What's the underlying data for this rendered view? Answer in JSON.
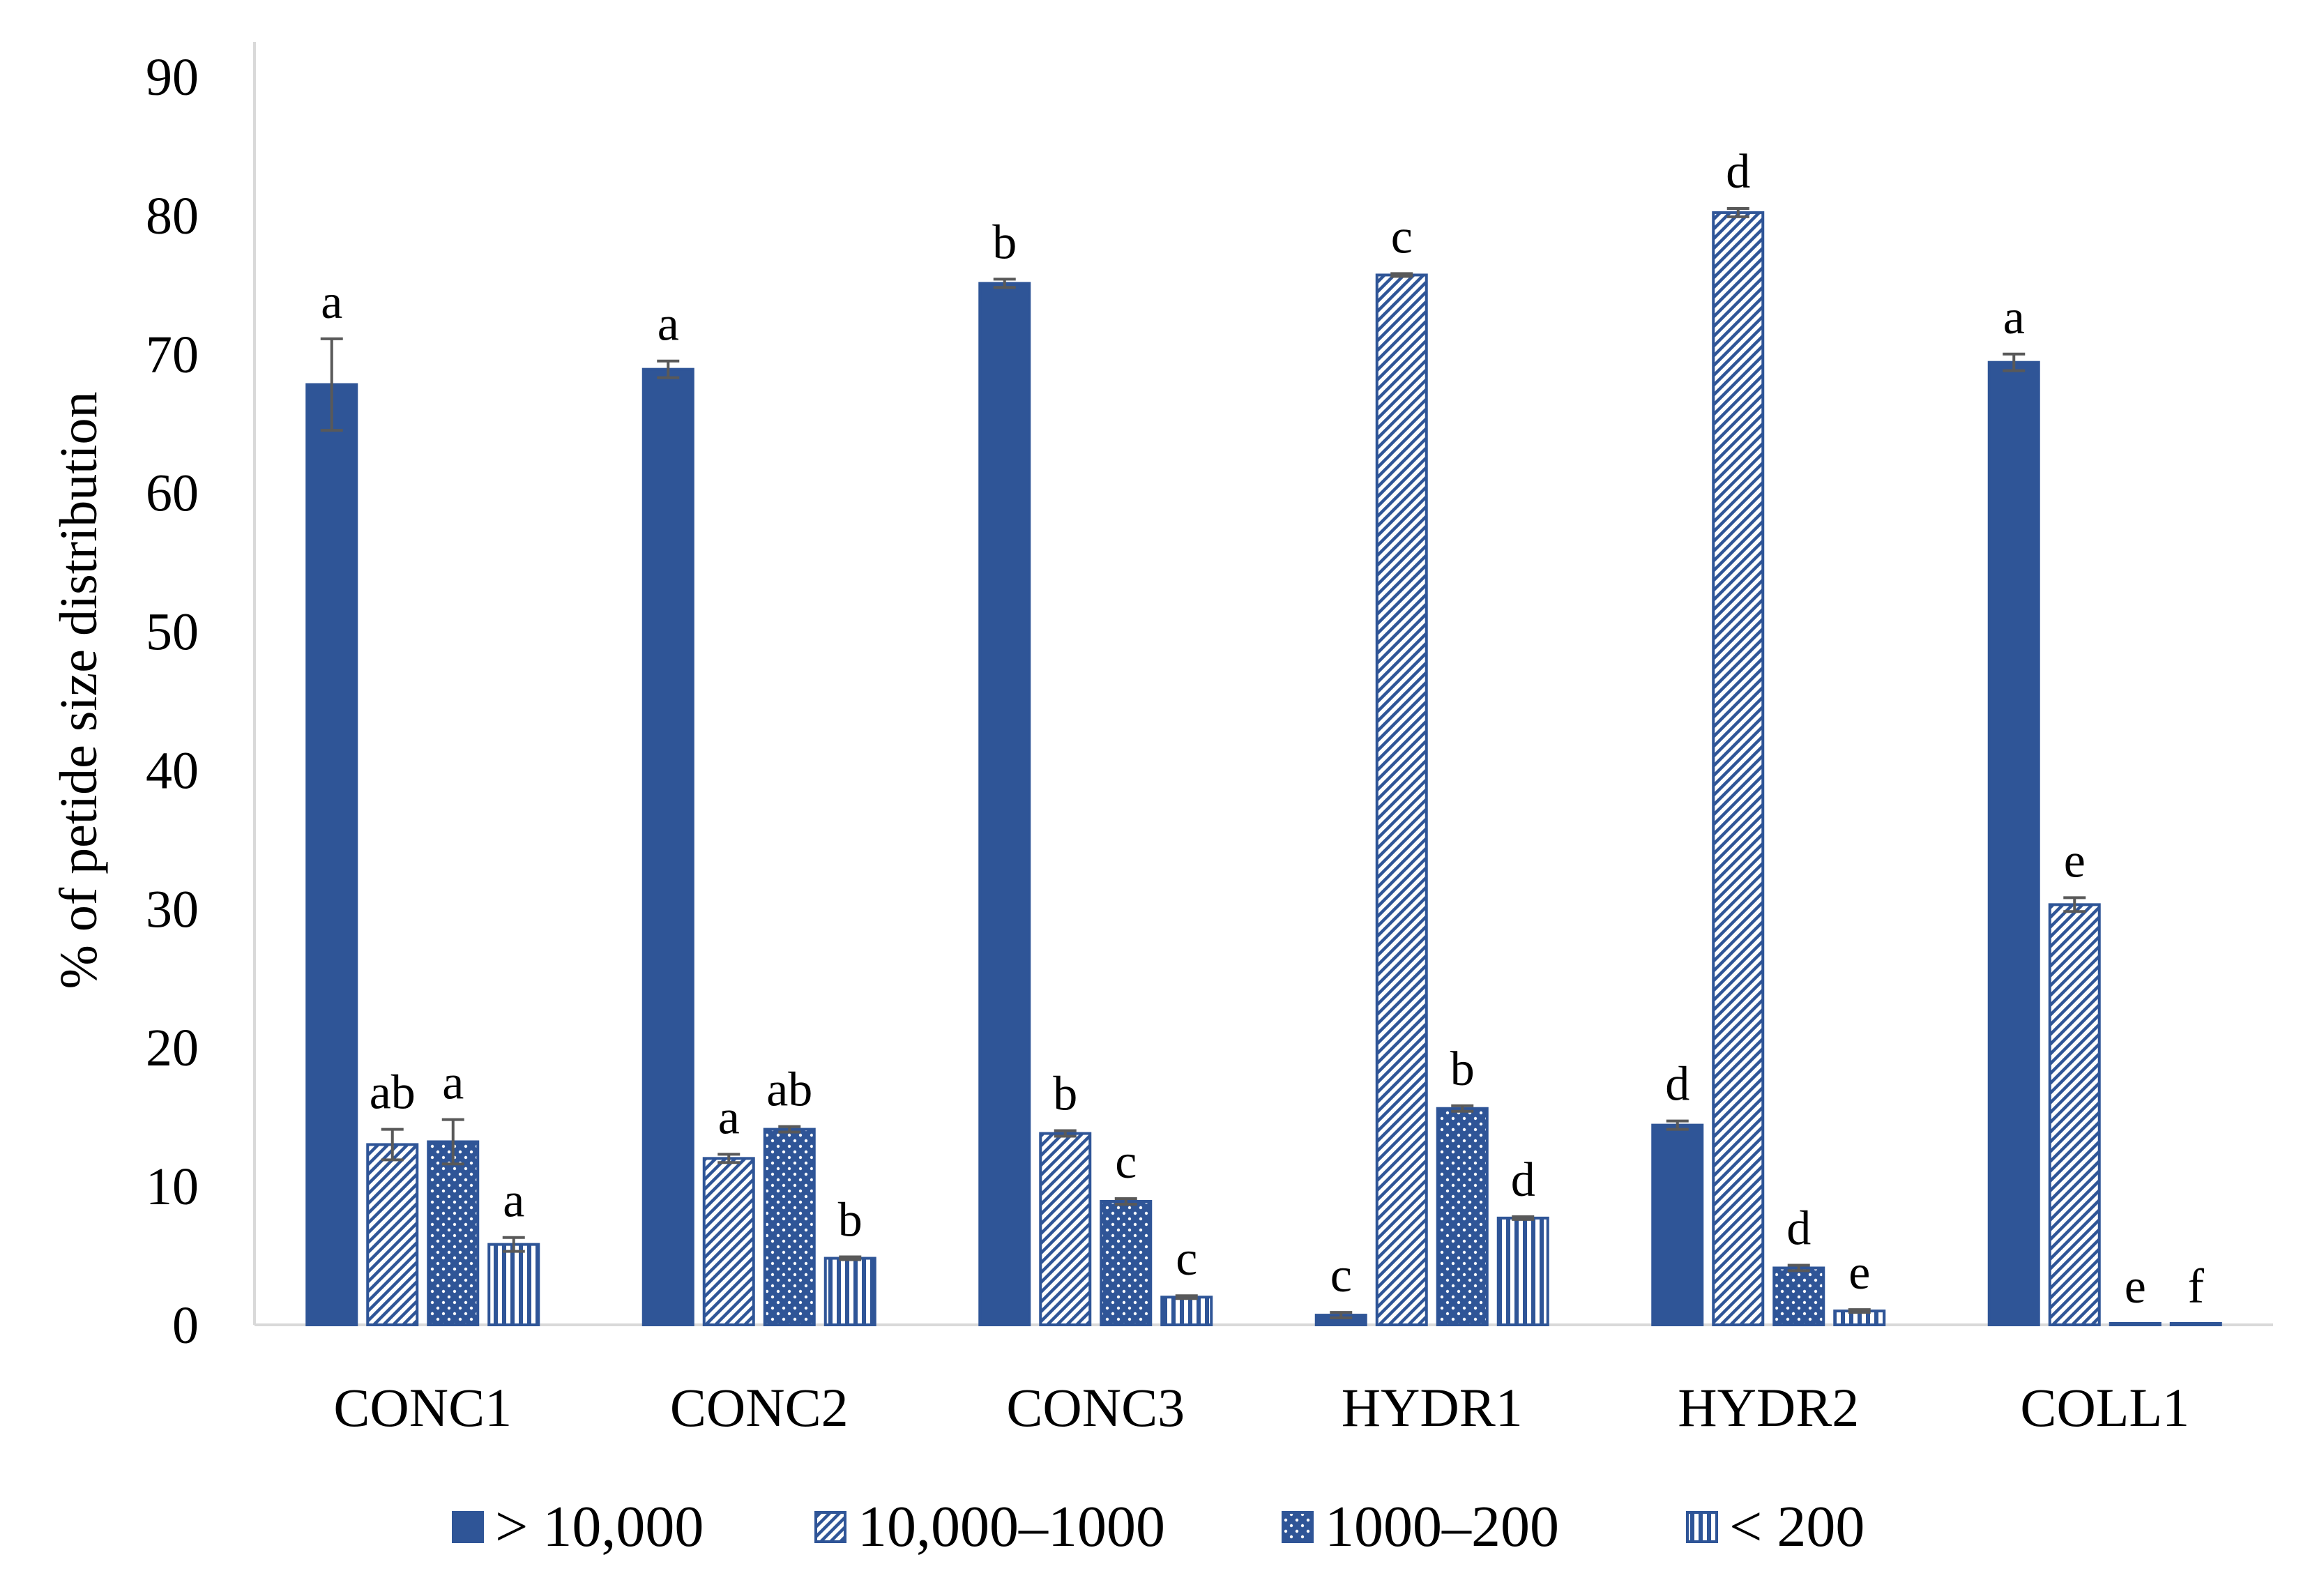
{
  "chart_data": {
    "type": "bar",
    "title": "",
    "xlabel": "",
    "ylabel": "% of petide size distribution",
    "ylim": [
      0,
      90
    ],
    "yticks": [
      0,
      10,
      20,
      30,
      40,
      50,
      60,
      70,
      80,
      90
    ],
    "grid": false,
    "legend_position": "bottom",
    "categories": [
      "CONC1",
      "CONC2",
      "CONC3",
      "HYDR1",
      "HYDR2",
      "COLL1"
    ],
    "series": [
      {
        "name": "> 10,000",
        "pattern": "solid",
        "values": [
          67.8,
          68.9,
          75.1,
          0.7,
          14.4,
          69.4
        ],
        "errors": [
          3.3,
          0.6,
          0.3,
          0.2,
          0.3,
          0.6
        ],
        "letters": [
          "a",
          "a",
          "b",
          "c",
          "d",
          "a"
        ]
      },
      {
        "name": "10,000–1000",
        "pattern": "diagonal",
        "values": [
          13.0,
          12.0,
          13.8,
          75.7,
          80.2,
          30.3
        ],
        "errors": [
          1.1,
          0.3,
          0.2,
          0.1,
          0.3,
          0.5
        ],
        "letters": [
          "ab",
          "a",
          "b",
          "c",
          "d",
          "e"
        ]
      },
      {
        "name": "1000–200",
        "pattern": "dots",
        "values": [
          13.2,
          14.1,
          8.9,
          15.6,
          4.1,
          0.1
        ],
        "errors": [
          1.6,
          0.2,
          0.2,
          0.2,
          0.2,
          0.0
        ],
        "letters": [
          "a",
          "ab",
          "c",
          "b",
          "d",
          "e"
        ]
      },
      {
        "name": "< 200",
        "pattern": "vertical",
        "values": [
          5.8,
          4.8,
          2.0,
          7.7,
          1.0,
          0.1
        ],
        "errors": [
          0.5,
          0.1,
          0.1,
          0.1,
          0.1,
          0.0
        ],
        "letters": [
          "a",
          "b",
          "c",
          "d",
          "e",
          "f"
        ]
      }
    ],
    "colors": {
      "bar": "#2F5597",
      "error_bar": "#595959",
      "axis": "#D9D9D9"
    }
  }
}
